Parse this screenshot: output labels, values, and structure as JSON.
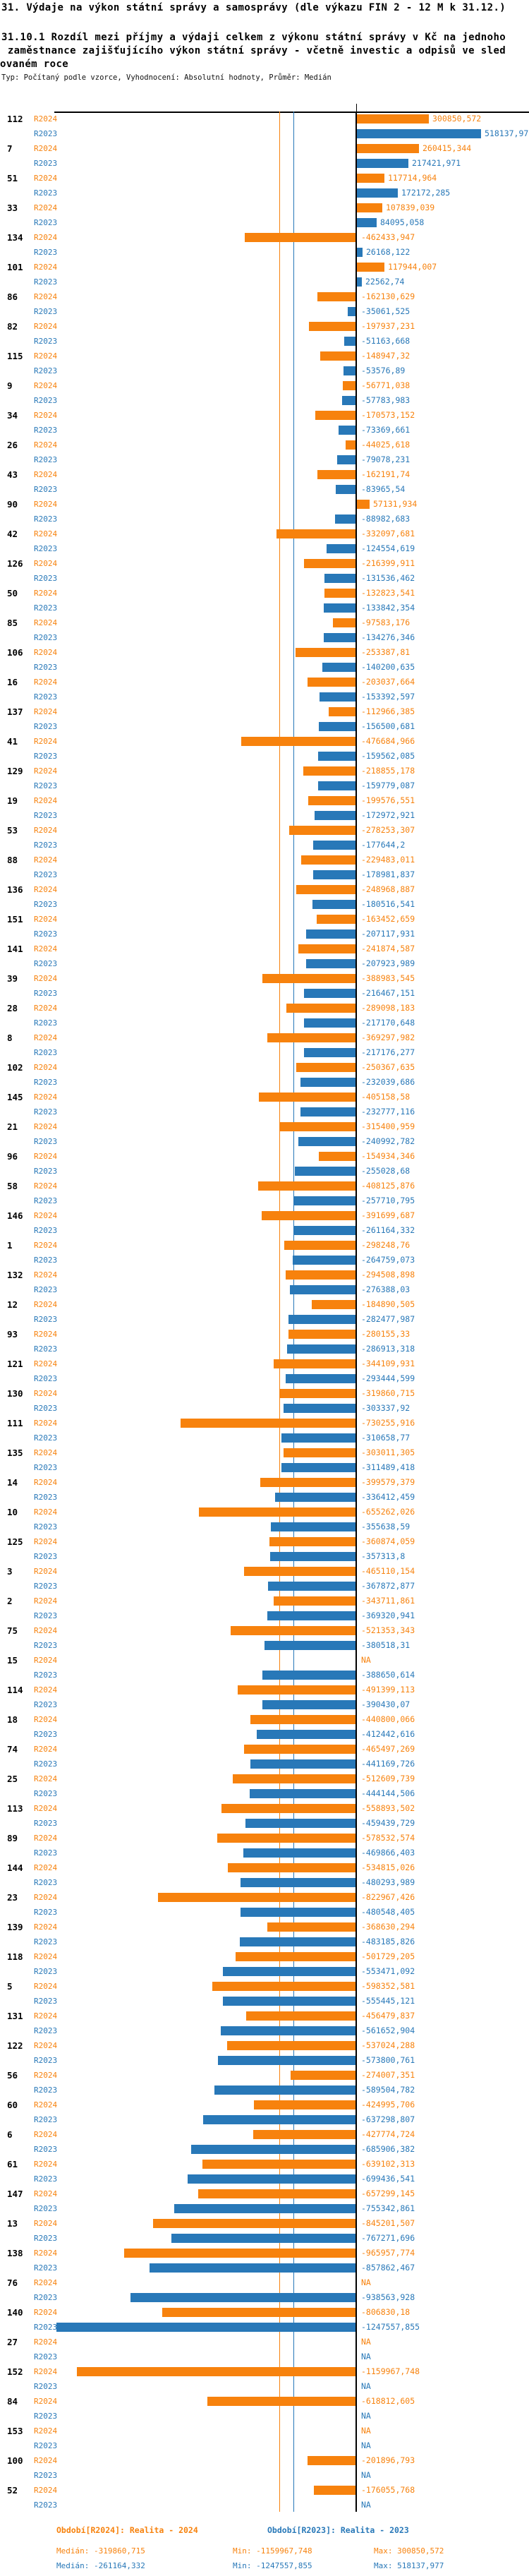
{
  "title": "31. Výdaje na výkon státní správy a samosprávy (dle výkazu FIN 2 - 12 M k 31.12.)",
  "subtitle_lines": [
    "31.10.1 Rozdíl mezi příjmy a výdaji celkem z výkonu státní správy v Kč na jednoho",
    " zaměstnance zajišťujícího výkon státní správy - včetně investic a odpisů ve sled",
    "ovaném roce"
  ],
  "meta_line": "Typ: Počítaný podle vzorce, Vyhodnocení: Absolutní hodnoty, Průměr: Medián",
  "colors": {
    "series_2024": "#F7820D",
    "series_2023": "#2878B8",
    "axis": "#000000"
  },
  "chart_data": {
    "type": "bar",
    "orientation": "horizontal-grouped",
    "value_axis": {
      "zero_line": true,
      "na_text": "NA"
    },
    "legend_position": "bottom",
    "series": [
      {
        "id": "R2024",
        "name": "Realita - 2024",
        "color": "#F7820D",
        "median": -319860.715,
        "min": -1159967.748,
        "max": 300850.572
      },
      {
        "id": "R2023",
        "name": "Realita - 2023",
        "color": "#2878B8",
        "median": -261164.332,
        "min": -1247557.855,
        "max": 518137.977
      }
    ],
    "groups": [
      {
        "label": "112",
        "R2024": 300850.572,
        "R2023": 518137.977
      },
      {
        "label": "7",
        "R2024": 260415.344,
        "R2023": 217421.971
      },
      {
        "label": "51",
        "R2024": 117714.964,
        "R2023": 172172.285
      },
      {
        "label": "33",
        "R2024": 107839.039,
        "R2023": 84095.058
      },
      {
        "label": "134",
        "R2024": -462433.947,
        "R2023": 26168.122
      },
      {
        "label": "101",
        "R2024": 117944.007,
        "R2023": 22562.74
      },
      {
        "label": "86",
        "R2024": -162130.629,
        "R2023": -35061.525
      },
      {
        "label": "82",
        "R2024": -197937.231,
        "R2023": -51163.668
      },
      {
        "label": "115",
        "R2024": -148947.32,
        "R2023": -53576.89
      },
      {
        "label": "9",
        "R2024": -56771.038,
        "R2023": -57783.983
      },
      {
        "label": "34",
        "R2024": -170573.152,
        "R2023": -73369.661
      },
      {
        "label": "26",
        "R2024": -44025.618,
        "R2023": -79078.231
      },
      {
        "label": "43",
        "R2024": -162191.74,
        "R2023": -83965.54
      },
      {
        "label": "90",
        "R2024": 57131.934,
        "R2023": -88982.683
      },
      {
        "label": "42",
        "R2024": -332097.681,
        "R2023": -124554.619
      },
      {
        "label": "126",
        "R2024": -216399.911,
        "R2023": -131536.462
      },
      {
        "label": "50",
        "R2024": -132823.541,
        "R2023": -133842.354
      },
      {
        "label": "85",
        "R2024": -97583.176,
        "R2023": -134276.346
      },
      {
        "label": "106",
        "R2024": -253387.81,
        "R2023": -140200.635
      },
      {
        "label": "16",
        "R2024": -203037.664,
        "R2023": -153392.597
      },
      {
        "label": "137",
        "R2024": -112966.385,
        "R2023": -156500.681
      },
      {
        "label": "41",
        "R2024": -476684.966,
        "R2023": -159562.085
      },
      {
        "label": "129",
        "R2024": -218855.178,
        "R2023": -159779.087
      },
      {
        "label": "19",
        "R2024": -199576.551,
        "R2023": -172972.921
      },
      {
        "label": "53",
        "R2024": -278253.307,
        "R2023": -177644.2
      },
      {
        "label": "88",
        "R2024": -229483.011,
        "R2023": -178981.837
      },
      {
        "label": "136",
        "R2024": -248968.887,
        "R2023": -180516.541
      },
      {
        "label": "151",
        "R2024": -163452.659,
        "R2023": -207117.931
      },
      {
        "label": "141",
        "R2024": -241874.587,
        "R2023": -207923.989
      },
      {
        "label": "39",
        "R2024": -388983.545,
        "R2023": -216467.151
      },
      {
        "label": "28",
        "R2024": -289098.183,
        "R2023": -217170.648
      },
      {
        "label": "8",
        "R2024": -369297.982,
        "R2023": -217176.277
      },
      {
        "label": "102",
        "R2024": -250367.635,
        "R2023": -232039.686
      },
      {
        "label": "145",
        "R2024": -405158.58,
        "R2023": -232777.116
      },
      {
        "label": "21",
        "R2024": -315400.959,
        "R2023": -240992.782
      },
      {
        "label": "96",
        "R2024": -154934.346,
        "R2023": -255028.68
      },
      {
        "label": "58",
        "R2024": -408125.876,
        "R2023": -257710.795
      },
      {
        "label": "146",
        "R2024": -391699.687,
        "R2023": -261164.332
      },
      {
        "label": "1",
        "R2024": -298248.76,
        "R2023": -264759.073
      },
      {
        "label": "132",
        "R2024": -294508.898,
        "R2023": -276388.03
      },
      {
        "label": "12",
        "R2024": -184890.505,
        "R2023": -282477.987
      },
      {
        "label": "93",
        "R2024": -280155.33,
        "R2023": -286913.318
      },
      {
        "label": "121",
        "R2024": -344109.931,
        "R2023": -293444.599
      },
      {
        "label": "130",
        "R2024": -319860.715,
        "R2023": -303337.92
      },
      {
        "label": "111",
        "R2024": -730255.916,
        "R2023": -310658.77
      },
      {
        "label": "135",
        "R2024": -303011.305,
        "R2023": -311489.418
      },
      {
        "label": "14",
        "R2024": -399579.379,
        "R2023": -336412.459
      },
      {
        "label": "10",
        "R2024": -655262.026,
        "R2023": -355638.59
      },
      {
        "label": "125",
        "R2024": -360874.059,
        "R2023": -357313.8
      },
      {
        "label": "3",
        "R2024": -465110.154,
        "R2023": -367872.877
      },
      {
        "label": "2",
        "R2024": -343711.861,
        "R2023": -369320.941
      },
      {
        "label": "75",
        "R2024": -521353.343,
        "R2023": -380518.31
      },
      {
        "label": "15",
        "R2024": null,
        "R2023": -388650.614
      },
      {
        "label": "114",
        "R2024": -491399.113,
        "R2023": -390430.07
      },
      {
        "label": "18",
        "R2024": -440800.066,
        "R2023": -412442.616
      },
      {
        "label": "74",
        "R2024": -465497.269,
        "R2023": -441169.726
      },
      {
        "label": "25",
        "R2024": -512609.739,
        "R2023": -444144.506
      },
      {
        "label": "113",
        "R2024": -558893.502,
        "R2023": -459439.729
      },
      {
        "label": "89",
        "R2024": -578532.574,
        "R2023": -469866.403
      },
      {
        "label": "144",
        "R2024": -534815.026,
        "R2023": -480293.989
      },
      {
        "label": "23",
        "R2024": -822967.426,
        "R2023": -480548.405
      },
      {
        "label": "139",
        "R2024": -368630.294,
        "R2023": -483185.826
      },
      {
        "label": "118",
        "R2024": -501729.205,
        "R2023": -553471.092
      },
      {
        "label": "5",
        "R2024": -598352.581,
        "R2023": -555445.121
      },
      {
        "label": "131",
        "R2024": -456479.837,
        "R2023": -561652.904
      },
      {
        "label": "122",
        "R2024": -537024.288,
        "R2023": -573800.761
      },
      {
        "label": "56",
        "R2024": -274007.351,
        "R2023": -589504.782
      },
      {
        "label": "60",
        "R2024": -424995.706,
        "R2023": -637298.807
      },
      {
        "label": "6",
        "R2024": -427774.724,
        "R2023": -685906.382
      },
      {
        "label": "61",
        "R2024": -639102.313,
        "R2023": -699436.541
      },
      {
        "label": "147",
        "R2024": -657299.145,
        "R2023": -755342.861
      },
      {
        "label": "13",
        "R2024": -845201.507,
        "R2023": -767271.696
      },
      {
        "label": "138",
        "R2024": -965957.774,
        "R2023": -857862.467
      },
      {
        "label": "76",
        "R2024": null,
        "R2023": -938563.928
      },
      {
        "label": "140",
        "R2024": -806830.18,
        "R2023": -1247557.855
      },
      {
        "label": "27",
        "R2024": null,
        "R2023": null
      },
      {
        "label": "152",
        "R2024": -1159967.748,
        "R2023": null
      },
      {
        "label": "84",
        "R2024": -618812.605,
        "R2023": null
      },
      {
        "label": "153",
        "R2024": null,
        "R2023": null
      },
      {
        "label": "100",
        "R2024": -201896.793,
        "R2023": null
      },
      {
        "label": "52",
        "R2024": -176055.768,
        "R2023": null
      }
    ]
  },
  "footer": {
    "period_2024": "Období[R2024]: Realita - 2024",
    "period_2023": "Období[R2023]: Realita - 2023",
    "stats_2024": {
      "median": "Medián: -319860,715",
      "min": "Min: -1159967,748",
      "max": "Max: 300850,572"
    },
    "stats_2023": {
      "median": "Medián: -261164,332",
      "min": "Min: -1247557,855",
      "max": "Max: 518137,977"
    }
  }
}
